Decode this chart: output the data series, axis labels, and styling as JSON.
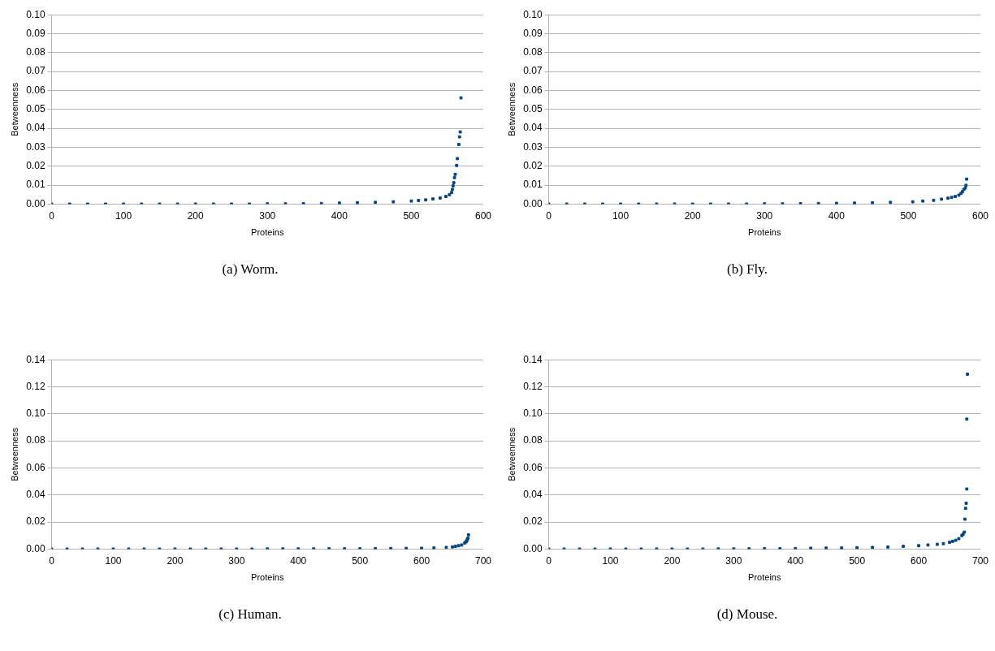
{
  "chart_data": [
    {
      "type": "scatter",
      "xlabel": "Proteins",
      "ylabel": "Betweenness",
      "annotations": [
        "(a) Worm."
      ],
      "grid": "y",
      "legend": false,
      "marker": "square",
      "xlim": [
        0,
        600
      ],
      "xticks": [
        0,
        100,
        200,
        300,
        400,
        500,
        600
      ],
      "ylim": [
        0,
        0.1
      ],
      "yticks": [
        {
          "value": 0,
          "label": "0.00"
        },
        {
          "value": 0.01,
          "label": "0.01"
        },
        {
          "value": 0.02,
          "label": "0.02"
        },
        {
          "value": 0.03,
          "label": "0.03"
        },
        {
          "value": 0.04,
          "label": "0.04"
        },
        {
          "value": 0.05,
          "label": "0.05"
        },
        {
          "value": 0.06,
          "label": "0.06"
        },
        {
          "value": 0.07,
          "label": "0.07"
        },
        {
          "value": 0.08,
          "label": "0.08"
        },
        {
          "value": 0.09,
          "label": "0.09"
        },
        {
          "value": 0.1,
          "label": "0.10"
        }
      ],
      "series": [
        {
          "color": "#004586",
          "x": [
            0,
            25,
            50,
            75,
            100,
            125,
            150,
            175,
            200,
            225,
            250,
            275,
            300,
            325,
            350,
            375,
            400,
            425,
            450,
            475,
            500,
            510,
            520,
            530,
            540,
            548,
            553,
            556,
            557,
            558,
            559,
            560,
            561,
            563,
            564,
            566,
            567,
            568,
            569
          ],
          "values": [
            0,
            0,
            0,
            0,
            0,
            0,
            0,
            0,
            0,
            0,
            0,
            0,
            0.0001,
            0.0001,
            0.0002,
            0.0003,
            0.0005,
            0.0007,
            0.0009,
            0.0012,
            0.0016,
            0.0019,
            0.0022,
            0.0027,
            0.0032,
            0.004,
            0.005,
            0.0061,
            0.0077,
            0.0096,
            0.0113,
            0.014,
            0.0157,
            0.0204,
            0.024,
            0.0315,
            0.0355,
            0.0381,
            0.0561
          ]
        }
      ]
    },
    {
      "type": "scatter",
      "xlabel": "Proteins",
      "ylabel": "Betweenness",
      "annotations": [
        "(b) Fly."
      ],
      "grid": "y",
      "legend": false,
      "marker": "square",
      "xlim": [
        0,
        600
      ],
      "xticks": [
        0,
        100,
        200,
        300,
        400,
        500,
        600
      ],
      "ylim": [
        0,
        0.1
      ],
      "yticks": [
        {
          "value": 0,
          "label": "0.00"
        },
        {
          "value": 0.01,
          "label": "0.01"
        },
        {
          "value": 0.02,
          "label": "0.02"
        },
        {
          "value": 0.03,
          "label": "0.03"
        },
        {
          "value": 0.04,
          "label": "0.04"
        },
        {
          "value": 0.05,
          "label": "0.05"
        },
        {
          "value": 0.06,
          "label": "0.06"
        },
        {
          "value": 0.07,
          "label": "0.07"
        },
        {
          "value": 0.08,
          "label": "0.08"
        },
        {
          "value": 0.09,
          "label": "0.09"
        },
        {
          "value": 0.1,
          "label": "0.10"
        }
      ],
      "series": [
        {
          "color": "#004586",
          "x": [
            0,
            25,
            50,
            75,
            100,
            125,
            150,
            175,
            200,
            225,
            250,
            275,
            300,
            325,
            350,
            375,
            400,
            425,
            450,
            475,
            506,
            520,
            535,
            546,
            555,
            560,
            565,
            570,
            573,
            575,
            577,
            579,
            580,
            581
          ],
          "values": [
            0,
            0,
            0,
            0,
            0,
            0,
            0,
            0,
            0,
            0,
            0,
            0,
            0.0001,
            0.0001,
            0.0002,
            0.0003,
            0.0004,
            0.0005,
            0.0007,
            0.0009,
            0.0012,
            0.0016,
            0.002,
            0.0026,
            0.0031,
            0.0035,
            0.004,
            0.0047,
            0.0056,
            0.0065,
            0.0077,
            0.0085,
            0.0099,
            0.0132
          ]
        }
      ]
    },
    {
      "type": "scatter",
      "xlabel": "Proteins",
      "ylabel": "Betweenness",
      "annotations": [
        "(c) Human."
      ],
      "grid": "y",
      "legend": false,
      "marker": "square",
      "xlim": [
        0,
        700
      ],
      "xticks": [
        0,
        100,
        200,
        300,
        400,
        500,
        600,
        700
      ],
      "ylim": [
        0,
        0.14
      ],
      "yticks": [
        {
          "value": 0,
          "label": "0.00"
        },
        {
          "value": 0.02,
          "label": "0.02"
        },
        {
          "value": 0.04,
          "label": "0.04"
        },
        {
          "value": 0.06,
          "label": "0.06"
        },
        {
          "value": 0.08,
          "label": "0.08"
        },
        {
          "value": 0.1,
          "label": "0.10"
        },
        {
          "value": 0.12,
          "label": "0.12"
        },
        {
          "value": 0.14,
          "label": "0.14"
        }
      ],
      "series": [
        {
          "color": "#004586",
          "x": [
            0,
            25,
            50,
            75,
            100,
            125,
            150,
            175,
            200,
            225,
            250,
            275,
            300,
            325,
            350,
            375,
            400,
            425,
            450,
            475,
            500,
            525,
            550,
            575,
            600,
            620,
            640,
            650,
            655,
            660,
            665,
            670,
            672,
            673,
            674,
            675,
            676
          ],
          "values": [
            0,
            0,
            0,
            0,
            0,
            0,
            0,
            0,
            0,
            0,
            0,
            0,
            0,
            0,
            0.0001,
            0.0001,
            0.0001,
            0.0001,
            0.0002,
            0.0002,
            0.0002,
            0.0003,
            0.0004,
            0.0005,
            0.0006,
            0.0008,
            0.0012,
            0.0016,
            0.002,
            0.0025,
            0.003,
            0.0045,
            0.0053,
            0.006,
            0.007,
            0.008,
            0.0105
          ]
        }
      ]
    },
    {
      "type": "scatter",
      "xlabel": "Proteins",
      "ylabel": "Betweenness",
      "annotations": [
        "(d) Mouse."
      ],
      "grid": "y",
      "legend": false,
      "marker": "square",
      "xlim": [
        0,
        700
      ],
      "xticks": [
        0,
        100,
        200,
        300,
        400,
        500,
        600,
        700
      ],
      "ylim": [
        0,
        0.14
      ],
      "yticks": [
        {
          "value": 0,
          "label": "0.00"
        },
        {
          "value": 0.02,
          "label": "0.02"
        },
        {
          "value": 0.04,
          "label": "0.04"
        },
        {
          "value": 0.06,
          "label": "0.06"
        },
        {
          "value": 0.08,
          "label": "0.08"
        },
        {
          "value": 0.1,
          "label": "0.10"
        },
        {
          "value": 0.12,
          "label": "0.12"
        },
        {
          "value": 0.14,
          "label": "0.14"
        }
      ],
      "series": [
        {
          "color": "#004586",
          "x": [
            0,
            25,
            50,
            75,
            100,
            125,
            150,
            175,
            200,
            225,
            250,
            275,
            300,
            325,
            350,
            375,
            400,
            425,
            450,
            475,
            500,
            525,
            550,
            575,
            600,
            615,
            630,
            640,
            650,
            655,
            660,
            665,
            670,
            672,
            674,
            675,
            676,
            677,
            678,
            678,
            679
          ],
          "values": [
            0,
            0,
            0,
            0,
            0,
            0,
            0,
            0,
            0,
            0,
            0,
            0.0001,
            0.0001,
            0.0002,
            0.0003,
            0.0003,
            0.0004,
            0.0006,
            0.0007,
            0.0008,
            0.001,
            0.0012,
            0.0015,
            0.002,
            0.0025,
            0.003,
            0.0035,
            0.004,
            0.005,
            0.0057,
            0.0065,
            0.0077,
            0.01,
            0.011,
            0.0125,
            0.0221,
            0.0301,
            0.0339,
            0.0444,
            0.0961,
            0.1293
          ]
        }
      ]
    }
  ]
}
